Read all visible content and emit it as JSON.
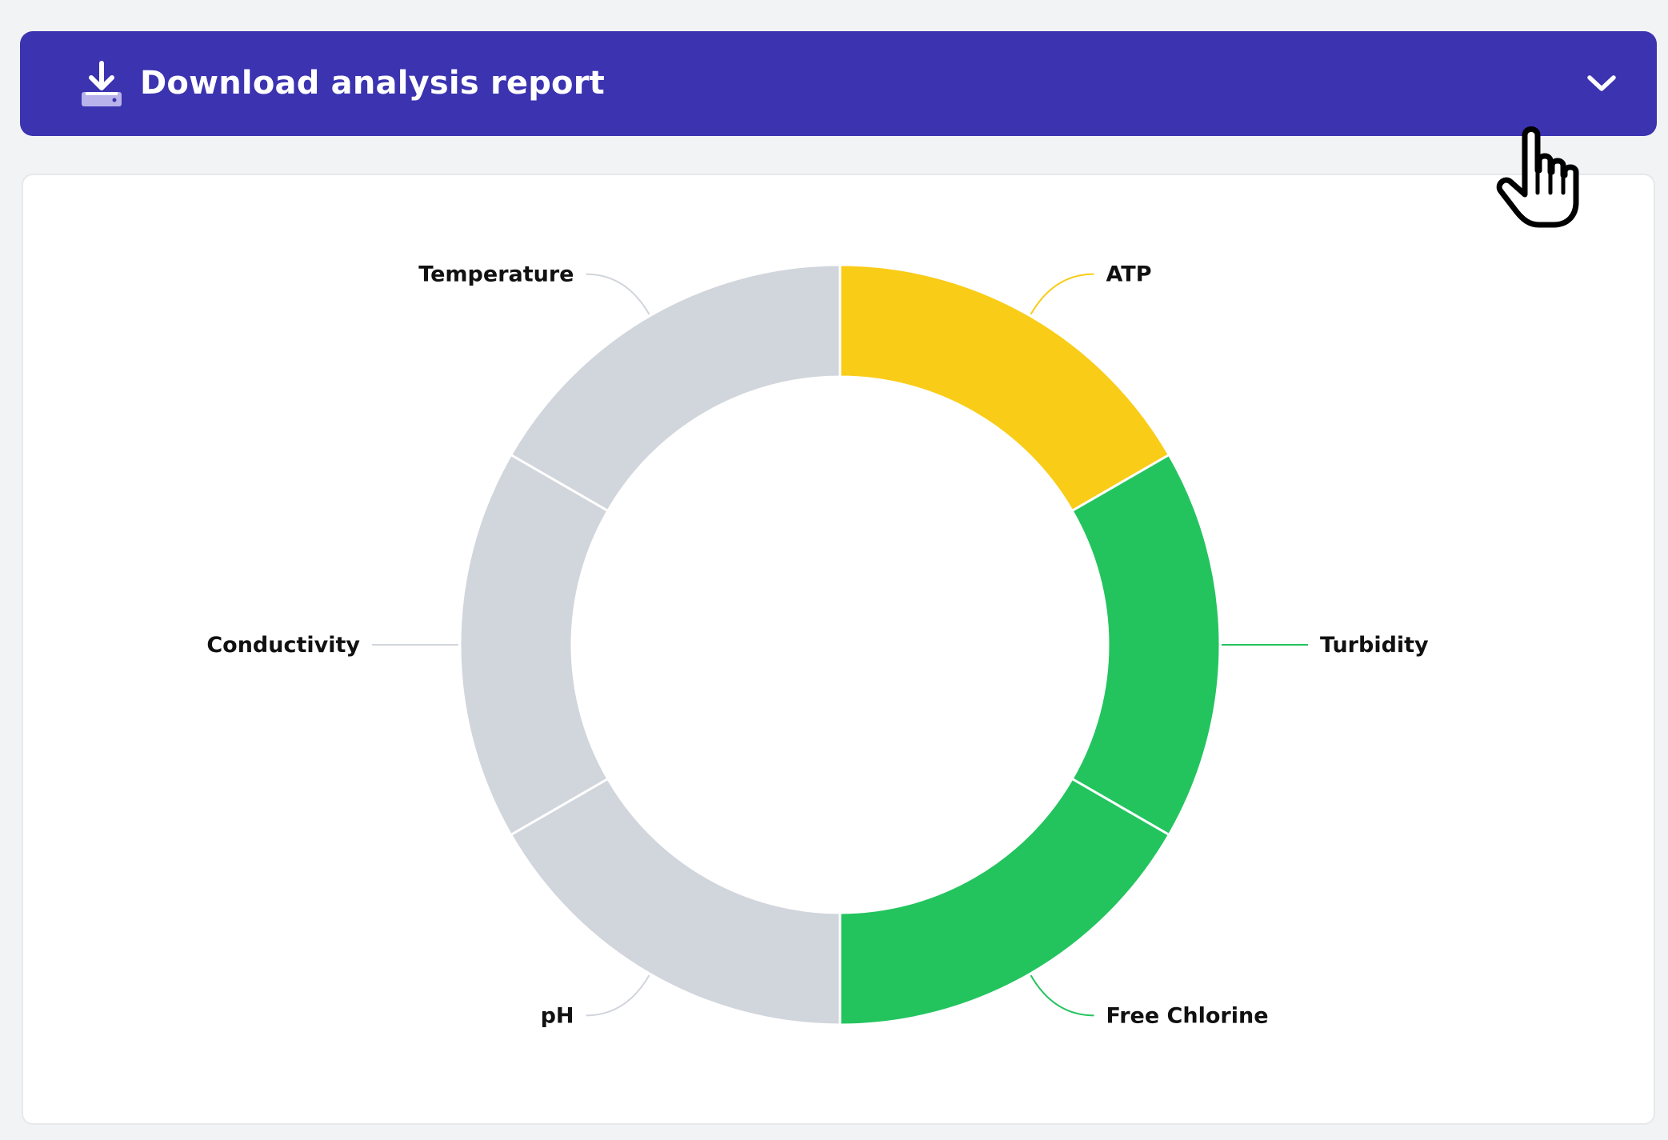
{
  "header": {
    "download_label": "Download analysis report",
    "download_icon": "download-icon",
    "chevron_icon": "chevron-down-icon",
    "background_color": "#3b33b0"
  },
  "chart_data": {
    "type": "pie",
    "donut": true,
    "title": "",
    "labels": [
      "ATP",
      "Turbidity",
      "Free Chlorine",
      "pH",
      "Conductivity",
      "Temperature"
    ],
    "values": [
      1,
      1,
      1,
      1,
      1,
      1
    ],
    "colors": [
      "#f9cc17",
      "#23c45e",
      "#23c45e",
      "#d1d5dc",
      "#d1d5dc",
      "#d1d5dc"
    ],
    "legend": "none"
  },
  "cursor": {
    "icon": "hand-pointer-icon"
  }
}
